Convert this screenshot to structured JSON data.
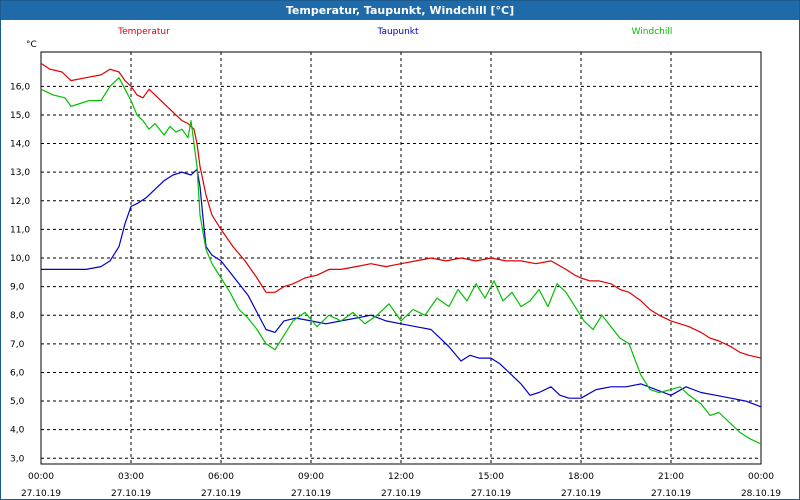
{
  "window": {
    "title": "Temperatur, Taupunkt, Windchill [°C]"
  },
  "chart_data": {
    "type": "line",
    "title": "Temperatur, Taupunkt, Windchill [°C]",
    "ylabel": "°C",
    "xlabel": "",
    "ylim": [
      2.8,
      17.2
    ],
    "xlim": [
      0,
      24
    ],
    "grid": true,
    "yticks": [
      3.0,
      4.0,
      5.0,
      6.0,
      7.0,
      8.0,
      9.0,
      10.0,
      11.0,
      12.0,
      13.0,
      14.0,
      15.0,
      16.0
    ],
    "ytick_labels": [
      "3,0",
      "4,0",
      "5,0",
      "6,0",
      "7,0",
      "8,0",
      "9,0",
      "10,0",
      "11,0",
      "12,0",
      "13,0",
      "14,0",
      "15,0",
      "16,0"
    ],
    "xticks": [
      {
        "x": 0,
        "time": "00:00",
        "date": "27.10.19"
      },
      {
        "x": 3,
        "time": "03:00",
        "date": "27.10.19"
      },
      {
        "x": 6,
        "time": "06:00",
        "date": "27.10.19"
      },
      {
        "x": 9,
        "time": "09:00",
        "date": "27.10.19"
      },
      {
        "x": 12,
        "time": "12:00",
        "date": "27.10.19"
      },
      {
        "x": 15,
        "time": "15:00",
        "date": "27.10.19"
      },
      {
        "x": 18,
        "time": "18:00",
        "date": "27.10.19"
      },
      {
        "x": 21,
        "time": "21:00",
        "date": "27.10.19"
      },
      {
        "x": 24,
        "time": "00:00",
        "date": "28.10.19"
      }
    ],
    "series": [
      {
        "name": "Temperatur",
        "color": "#e00000",
        "x": [
          0,
          0.3,
          0.7,
          1.0,
          1.5,
          2.0,
          2.3,
          2.6,
          2.8,
          3.0,
          3.2,
          3.4,
          3.6,
          3.9,
          4.2,
          4.5,
          4.7,
          4.9,
          5.1,
          5.2,
          5.3,
          5.5,
          5.7,
          6.0,
          6.4,
          6.8,
          7.2,
          7.5,
          7.8,
          8.1,
          8.4,
          8.8,
          9.2,
          9.6,
          10.0,
          10.5,
          11.0,
          11.5,
          12.0,
          12.5,
          13.0,
          13.5,
          14.0,
          14.5,
          15.0,
          15.5,
          16.0,
          16.5,
          17.0,
          17.5,
          17.8,
          18.0,
          18.3,
          18.6,
          19.0,
          19.3,
          19.6,
          20.0,
          20.3,
          20.6,
          21.0,
          21.3,
          21.6,
          22.0,
          22.3,
          22.6,
          23.0,
          23.3,
          23.6,
          24.0
        ],
        "values": [
          16.8,
          16.6,
          16.5,
          16.2,
          16.3,
          16.4,
          16.6,
          16.5,
          16.2,
          16.0,
          15.7,
          15.6,
          15.9,
          15.6,
          15.3,
          15.0,
          14.8,
          14.7,
          14.5,
          14.0,
          13.2,
          12.2,
          11.5,
          11.0,
          10.4,
          9.9,
          9.3,
          8.8,
          8.8,
          9.0,
          9.1,
          9.3,
          9.4,
          9.6,
          9.6,
          9.7,
          9.8,
          9.7,
          9.8,
          9.9,
          10.0,
          9.9,
          10.0,
          9.9,
          10.0,
          9.9,
          9.9,
          9.8,
          9.9,
          9.6,
          9.4,
          9.3,
          9.2,
          9.2,
          9.1,
          8.9,
          8.8,
          8.5,
          8.2,
          8.0,
          7.8,
          7.7,
          7.6,
          7.4,
          7.2,
          7.1,
          6.9,
          6.7,
          6.6,
          6.5
        ]
      },
      {
        "name": "Taupunkt",
        "color": "#0000c8",
        "x": [
          0,
          0.5,
          1.0,
          1.5,
          2.0,
          2.3,
          2.6,
          2.8,
          3.0,
          3.2,
          3.5,
          3.8,
          4.1,
          4.4,
          4.7,
          5.0,
          5.2,
          5.3,
          5.4,
          5.5,
          5.7,
          6.0,
          6.3,
          6.6,
          6.9,
          7.2,
          7.5,
          7.8,
          8.1,
          8.5,
          9.0,
          9.5,
          10.0,
          10.5,
          11.0,
          11.5,
          12.0,
          12.5,
          13.0,
          13.3,
          13.6,
          14.0,
          14.3,
          14.6,
          15.0,
          15.3,
          15.6,
          16.0,
          16.3,
          16.6,
          17.0,
          17.3,
          17.6,
          18.0,
          18.5,
          19.0,
          19.5,
          20.0,
          20.5,
          21.0,
          21.5,
          22.0,
          22.5,
          23.0,
          23.5,
          24.0
        ],
        "values": [
          9.6,
          9.6,
          9.6,
          9.6,
          9.7,
          9.9,
          10.4,
          11.2,
          11.8,
          11.9,
          12.1,
          12.4,
          12.7,
          12.9,
          13.0,
          12.9,
          13.1,
          12.5,
          11.4,
          10.4,
          10.1,
          9.9,
          9.5,
          9.1,
          8.7,
          8.1,
          7.5,
          7.4,
          7.8,
          7.9,
          7.8,
          7.7,
          7.8,
          7.9,
          8.0,
          7.8,
          7.7,
          7.6,
          7.5,
          7.2,
          6.9,
          6.4,
          6.6,
          6.5,
          6.5,
          6.3,
          6.0,
          5.6,
          5.2,
          5.3,
          5.5,
          5.2,
          5.1,
          5.1,
          5.4,
          5.5,
          5.5,
          5.6,
          5.4,
          5.2,
          5.5,
          5.3,
          5.2,
          5.1,
          5.0,
          4.8
        ]
      },
      {
        "name": "Windchill",
        "color": "#00c000",
        "x": [
          0,
          0.4,
          0.8,
          1.0,
          1.3,
          1.6,
          2.0,
          2.3,
          2.6,
          2.8,
          3.0,
          3.2,
          3.4,
          3.6,
          3.8,
          4.1,
          4.3,
          4.5,
          4.7,
          4.9,
          5.0,
          5.2,
          5.3,
          5.5,
          5.7,
          6.0,
          6.3,
          6.6,
          6.9,
          7.2,
          7.5,
          7.8,
          8.1,
          8.4,
          8.8,
          9.2,
          9.6,
          10.0,
          10.4,
          10.8,
          11.2,
          11.6,
          12.0,
          12.4,
          12.8,
          13.2,
          13.6,
          13.9,
          14.2,
          14.5,
          14.8,
          15.1,
          15.4,
          15.7,
          16.0,
          16.3,
          16.6,
          16.9,
          17.2,
          17.5,
          17.8,
          18.1,
          18.4,
          18.7,
          19.0,
          19.3,
          19.6,
          20.0,
          20.3,
          20.6,
          21.0,
          21.3,
          21.6,
          22.0,
          22.3,
          22.6,
          23.0,
          23.3,
          23.6,
          24.0
        ],
        "values": [
          15.9,
          15.7,
          15.6,
          15.3,
          15.4,
          15.5,
          15.5,
          16.0,
          16.3,
          15.9,
          15.5,
          15.0,
          14.8,
          14.5,
          14.7,
          14.3,
          14.6,
          14.4,
          14.5,
          14.2,
          14.8,
          13.2,
          11.5,
          10.3,
          9.8,
          9.3,
          8.8,
          8.2,
          7.9,
          7.5,
          7.0,
          6.8,
          7.3,
          7.8,
          8.1,
          7.6,
          8.0,
          7.8,
          8.1,
          7.7,
          8.0,
          8.4,
          7.8,
          8.2,
          8.0,
          8.6,
          8.3,
          8.9,
          8.5,
          9.1,
          8.6,
          9.2,
          8.5,
          8.8,
          8.3,
          8.5,
          8.9,
          8.3,
          9.1,
          8.8,
          8.3,
          7.8,
          7.5,
          8.0,
          7.6,
          7.2,
          7.0,
          5.9,
          5.4,
          5.3,
          5.4,
          5.5,
          5.2,
          4.9,
          4.5,
          4.6,
          4.2,
          3.9,
          3.7,
          3.5
        ]
      }
    ]
  }
}
